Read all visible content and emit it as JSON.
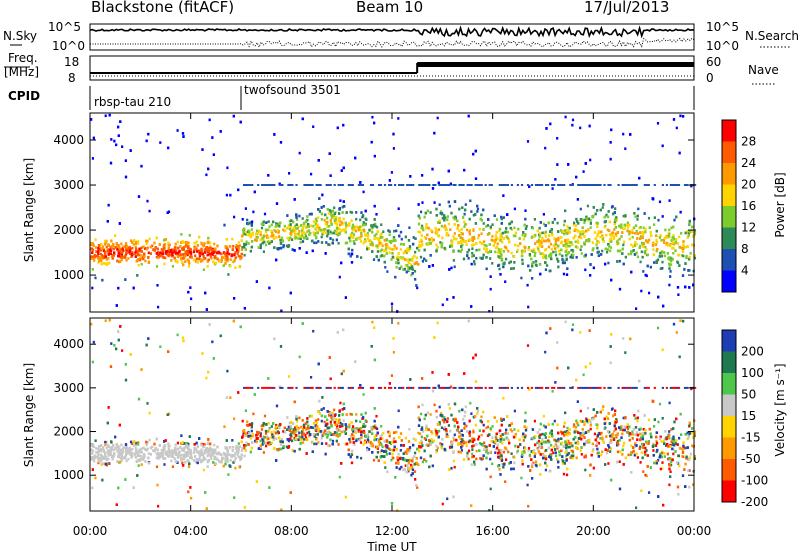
{
  "header": {
    "station": "Blackstone (fitACF)",
    "beam": "Beam 10",
    "date": "17/Jul/2013"
  },
  "top_strip": {
    "left_label": "N.Sky",
    "right_label": "N.Search",
    "left_ticks": [
      "10^5",
      "10^0"
    ],
    "right_ticks": [
      "10^5",
      "10^0"
    ]
  },
  "freq_strip": {
    "left_label_line1": "Freq.",
    "left_label_line2": "[MHz]",
    "right_label": "Nave",
    "left_ticks": [
      "18",
      "8"
    ],
    "right_ticks": [
      "60",
      "0"
    ]
  },
  "cpid": {
    "label": "CPID",
    "programs": [
      {
        "name": "rbsp-tau 210"
      },
      {
        "name": "twofsound 3501"
      }
    ]
  },
  "power_panel": {
    "ylabel": "Slant Range [km]",
    "yticks": [
      "4000",
      "3000",
      "2000",
      "1000"
    ],
    "colorbar_label": "Power [dB]",
    "colorbar_ticks": [
      "28",
      "24",
      "20",
      "16",
      "12",
      "8",
      "4"
    ],
    "colors": [
      "#ff0000",
      "#ff5a00",
      "#ff9900",
      "#ffd400",
      "#7dcc2e",
      "#2e8b57",
      "#1e50b4",
      "#0000ff"
    ]
  },
  "velocity_panel": {
    "ylabel": "Slant Range [km]",
    "yticks": [
      "4000",
      "3000",
      "2000",
      "1000"
    ],
    "colorbar_label": "Velocity [m s⁻¹]",
    "colorbar_ticks": [
      "200",
      "100",
      "50",
      "15",
      "-15",
      "-50",
      "-100",
      "-200"
    ],
    "colors": [
      "#1e3cb4",
      "#1e7850",
      "#4cc74c",
      "#c8c8c8",
      "#ffd400",
      "#ff9900",
      "#ff5a00",
      "#ff0000"
    ]
  },
  "time_axis": {
    "label": "Time UT",
    "ticks": [
      "00:00",
      "04:00",
      "08:00",
      "12:00",
      "16:00",
      "20:00",
      "00:00"
    ]
  },
  "chart_data": {
    "type": "heatmap",
    "x_range_hours": [
      0,
      24
    ],
    "y_range_km": [
      180,
      4600
    ],
    "cpid_change_hour": 6,
    "frequency_change_hour": 13,
    "ground_scatter_velocity_band": "15 to -15",
    "scatter_bands": [
      {
        "start_hour": 0.0,
        "end_hour": 6.0,
        "center_km": 1500,
        "halfwidth_km": 200
      },
      {
        "start_hour": 6.0,
        "end_hour": 9.0,
        "center_km": 1900,
        "halfwidth_km": 250
      },
      {
        "start_hour": 9.0,
        "end_hour": 13.0,
        "center_km": 1900,
        "halfwidth_km": 350
      },
      {
        "start_hour": 13.0,
        "end_hour": 24.0,
        "center_km": 1800,
        "halfwidth_km": 450
      }
    ],
    "horizontal_line_km": 3000
  }
}
